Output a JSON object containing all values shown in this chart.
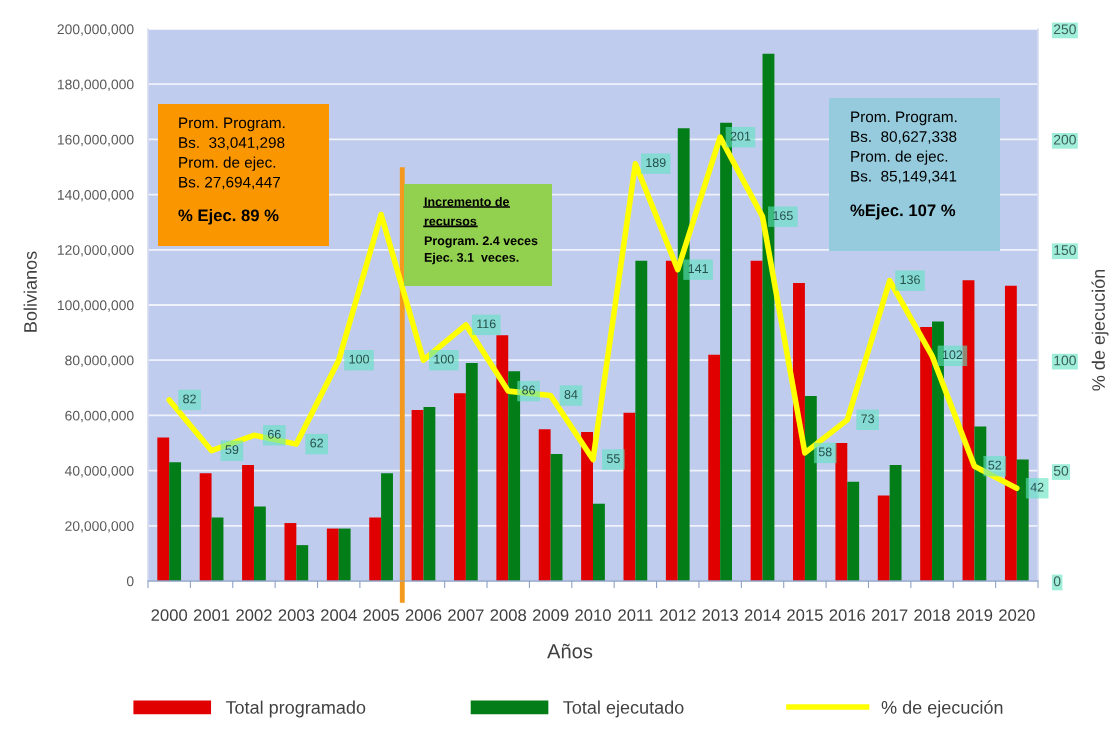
{
  "chart_data": {
    "type": "bar",
    "xlabel": "Años",
    "ylabel": "Bolivianos",
    "y2label": "% de ejecución",
    "x": [
      2000,
      2001,
      2002,
      2003,
      2004,
      2005,
      2006,
      2007,
      2008,
      2009,
      2010,
      2011,
      2012,
      2013,
      2014,
      2015,
      2016,
      2017,
      2018,
      2019,
      2020
    ],
    "xlim": [
      1999.5,
      2020.5
    ],
    "xticks": [
      {
        "value": 1999.5,
        "label": null
      },
      2000,
      {
        "value": 2000.5,
        "label": null
      },
      2001,
      {
        "value": 2001.5,
        "label": null
      },
      2002,
      {
        "value": 2002.5,
        "label": null
      },
      2003,
      {
        "value": 2003.5,
        "label": null
      },
      2004,
      {
        "value": 2004.5,
        "label": null
      },
      2005,
      {
        "value": 2005.5,
        "label": null
      },
      2006,
      {
        "value": 2006.5,
        "label": null
      },
      2007,
      {
        "value": 2007.5,
        "label": null
      },
      2008,
      {
        "value": 2008.5,
        "label": null
      },
      2009,
      {
        "value": 2009.5,
        "label": null
      },
      2010,
      {
        "value": 2010.5,
        "label": null
      },
      2011,
      {
        "value": 2011.5,
        "label": null
      },
      2012,
      {
        "value": 2012.5,
        "label": null
      },
      2013,
      {
        "value": 2013.5,
        "label": null
      },
      2014,
      {
        "value": 2014.5,
        "label": null
      },
      2015,
      {
        "value": 2015.5,
        "label": null
      },
      2016,
      {
        "value": 2016.5,
        "label": null
      },
      2017,
      {
        "value": 2017.5,
        "label": null
      },
      2018,
      {
        "value": 2018.5,
        "label": null
      },
      2019,
      {
        "value": 2019.5,
        "label": null
      },
      2020,
      {
        "value": 2020.5,
        "label": null
      }
    ],
    "ylim": [
      0,
      200000000
    ],
    "yticks": [
      0,
      {
        "value": 20000000,
        "label": "20,000,000"
      },
      {
        "value": 40000000,
        "label": "40,000,000"
      },
      {
        "value": 60000000,
        "label": "60,000,000"
      },
      {
        "value": 80000000,
        "label": "80,000,000"
      },
      {
        "value": 100000000,
        "label": "100,000,000"
      },
      {
        "value": 120000000,
        "label": "120,000,000"
      },
      {
        "value": 140000000,
        "label": "140,000,000"
      },
      {
        "value": 160000000,
        "label": "160,000,000"
      },
      {
        "value": 180000000,
        "label": "180,000,000"
      },
      {
        "value": 200000000,
        "label": "200,000,000"
      }
    ],
    "y2lim": [
      0,
      250
    ],
    "y2ticks": [
      0,
      50,
      100,
      150,
      200,
      250
    ],
    "series": [
      {
        "name": "Total programado",
        "color": "#e00000",
        "values": [
          52000000,
          39000000,
          42000000,
          21000000,
          19000000,
          23000000,
          62000000,
          68000000,
          89000000,
          55000000,
          54000000,
          61000000,
          116000000,
          82000000,
          116000000,
          108000000,
          50000000,
          31000000,
          92000000,
          109000000,
          107000000
        ]
      },
      {
        "name": "Total ejecutado",
        "color": "#037d17",
        "values": [
          43000000,
          23000000,
          27000000,
          13000000,
          19000000,
          39000000,
          63000000,
          79000000,
          76000000,
          46000000,
          28000000,
          116000000,
          164000000,
          166000000,
          191000000,
          67000000,
          36000000,
          42000000,
          94000000,
          56000000,
          44000000
        ]
      },
      {
        "name": "% de ejecución",
        "type": "line",
        "axis": "y2",
        "color": "#ffff00",
        "values": [
          82,
          59,
          66,
          62,
          100,
          166,
          100,
          116,
          86,
          84,
          55,
          189,
          141,
          201,
          165,
          58,
          73,
          136,
          102,
          52,
          42
        ],
        "value_labels": [
          "82",
          "59",
          "66",
          "62",
          "100",
          null,
          "100",
          "116",
          "86",
          "84",
          "55",
          "189",
          "141",
          "201",
          "165",
          "58",
          "73",
          "136",
          "102",
          "52",
          "42"
        ]
      }
    ],
    "ref_lines": [
      {
        "axis": "x",
        "value": 2005.5,
        "color": "#f39a1e"
      }
    ],
    "annotations": [
      "Prom. Program.\nBs.  33,041,298\nProm. de ejec.\nBs. 27,694,447",
      "% Ejec. 89 %",
      "Incremento de\nrecursos",
      "Program. 2.4 veces\nEjec. 3.1  veces.",
      "Prom. Program.\nBs.  80,627,338\nProm. de ejec.\nBs.  85,149,341",
      "%Ejec. 107 %"
    ],
    "grid": "y",
    "legend": "bottom"
  }
}
